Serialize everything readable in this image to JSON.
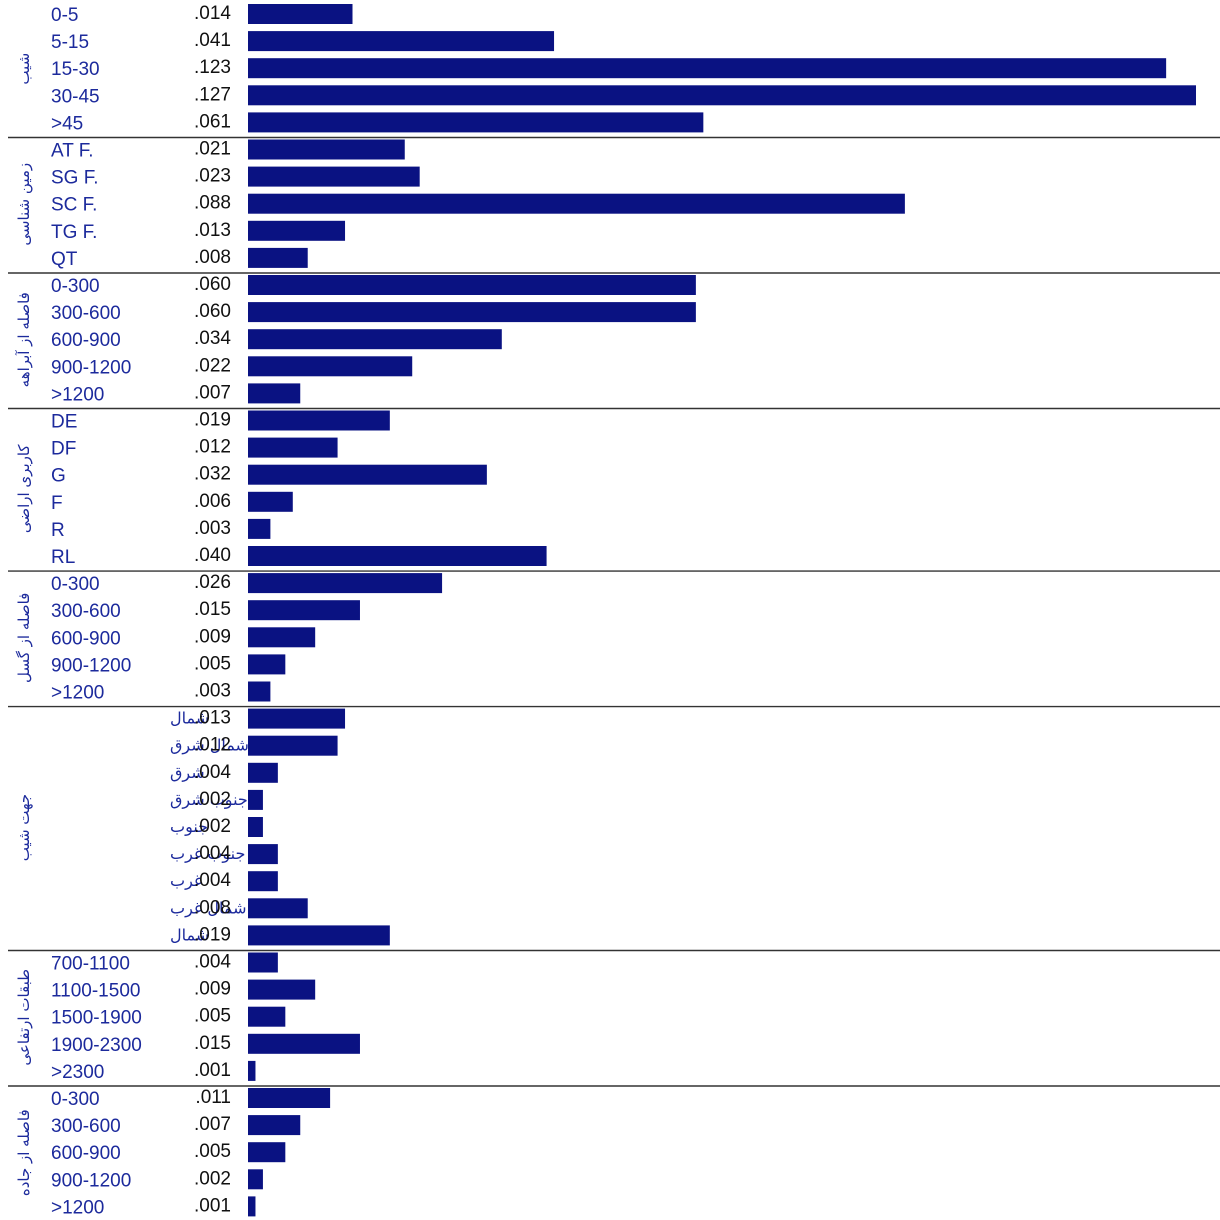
{
  "chart_data": {
    "type": "bar",
    "orientation": "horizontal",
    "bar_color": "#0a1282",
    "xlim": [
      0,
      0.127
    ],
    "groups": [
      {
        "label": "شیب",
        "categories": [
          "0-5",
          "5-15",
          "15-30",
          "30-45",
          ">45"
        ],
        "values": [
          0.014,
          0.041,
          0.123,
          0.127,
          0.061
        ],
        "value_labels": [
          ".014",
          ".041",
          ".123",
          ".127",
          ".061"
        ]
      },
      {
        "label": "زمین شناسی",
        "categories": [
          "AT F.",
          "SG F.",
          "SC F.",
          "TG F.",
          "QT"
        ],
        "values": [
          0.021,
          0.023,
          0.088,
          0.013,
          0.008
        ],
        "value_labels": [
          ".021",
          ".023",
          ".088",
          ".013",
          ".008"
        ]
      },
      {
        "label": "فاصله از آبراهه",
        "categories": [
          "0-300",
          "300-600",
          "600-900",
          "900-1200",
          ">1200"
        ],
        "values": [
          0.06,
          0.06,
          0.034,
          0.022,
          0.007
        ],
        "value_labels": [
          ".060",
          ".060",
          ".034",
          ".022",
          ".007"
        ]
      },
      {
        "label": "کاربری اراضی",
        "categories": [
          "DE",
          "DF",
          "G",
          "F",
          "R",
          "RL"
        ],
        "values": [
          0.019,
          0.012,
          0.032,
          0.006,
          0.003,
          0.04
        ],
        "value_labels": [
          ".019",
          ".012",
          ".032",
          ".006",
          ".003",
          ".040"
        ]
      },
      {
        "label": "فاصله از گسل",
        "categories": [
          "0-300",
          "300-600",
          "600-900",
          "900-1200",
          ">1200"
        ],
        "values": [
          0.026,
          0.015,
          0.009,
          0.005,
          0.003
        ],
        "value_labels": [
          ".026",
          ".015",
          ".009",
          ".005",
          ".003"
        ]
      },
      {
        "label": "جهت شیب",
        "categories": [
          "شمال",
          "شمال شرق",
          "شرق",
          "جنوب شرق",
          "جنوب",
          "جنوب غرب",
          "غرب",
          "شمال غرب",
          "شمال"
        ],
        "values": [
          0.013,
          0.012,
          0.004,
          0.002,
          0.002,
          0.004,
          0.004,
          0.008,
          0.019
        ],
        "value_labels": [
          ".013",
          ".012",
          ".004",
          ".002",
          ".002",
          ".004",
          ".004",
          ".008",
          ".019"
        ]
      },
      {
        "label": "طبقات ارتفاعی",
        "categories": [
          "700-1100",
          "1100-1500",
          "1500-1900",
          "1900-2300",
          ">2300"
        ],
        "values": [
          0.004,
          0.009,
          0.005,
          0.015,
          0.001
        ],
        "value_labels": [
          ".004",
          ".009",
          ".005",
          ".015",
          ".001"
        ]
      },
      {
        "label": "فاصله از جاده",
        "categories": [
          "0-300",
          "300-600",
          "600-900",
          "900-1200",
          ">1200"
        ],
        "values": [
          0.011,
          0.007,
          0.005,
          0.002,
          0.001
        ],
        "value_labels": [
          ".011",
          ".007",
          ".005",
          ".002",
          ".001"
        ]
      }
    ]
  }
}
